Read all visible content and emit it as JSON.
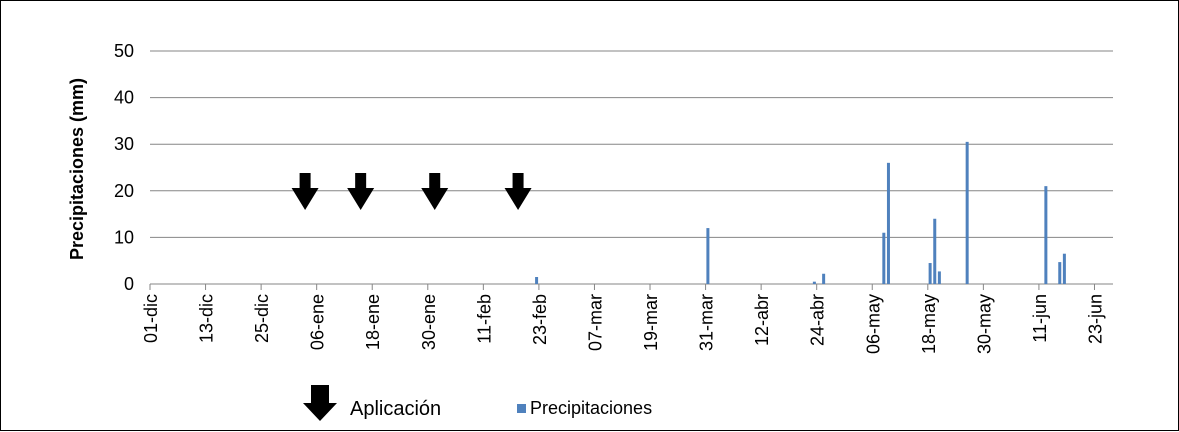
{
  "chart_data": {
    "type": "bar",
    "title": "",
    "xlabel": "",
    "ylabel": "Precipitaciones (mm)",
    "ylim": [
      0,
      50
    ],
    "y_ticks": [
      "0",
      "10",
      "20",
      "30",
      "40",
      "50"
    ],
    "x_ticks": [
      "01-dic",
      "13-dic",
      "25-dic",
      "06-ene",
      "18-ene",
      "30-ene",
      "11-feb",
      "23-feb",
      "07-mar",
      "19-mar",
      "31-mar",
      "12-abr",
      "24-abr",
      "06-may",
      "18-may",
      "30-may",
      "11-jun",
      "23-jun"
    ],
    "grid": true,
    "legend_position": "bottom",
    "series": [
      {
        "name": "Precipitaciones",
        "color": "#4f81bd",
        "points": [
          {
            "x": "22-feb",
            "y": 1.5
          },
          {
            "x": "31-mar",
            "y": 12
          },
          {
            "x": "23-abr",
            "y": 0.5
          },
          {
            "x": "25-abr",
            "y": 2.2
          },
          {
            "x": "08-may",
            "y": 11
          },
          {
            "x": "09-may",
            "y": 26
          },
          {
            "x": "18-may",
            "y": 4.5
          },
          {
            "x": "19-may",
            "y": 14
          },
          {
            "x": "20-may",
            "y": 2.7
          },
          {
            "x": "26-may",
            "y": 30.5
          },
          {
            "x": "12-jun",
            "y": 21
          },
          {
            "x": "15-jun",
            "y": 4.7
          },
          {
            "x": "16-jun",
            "y": 6.5
          }
        ]
      }
    ],
    "annotations": {
      "arrow_marker_dates": [
        "03-ene",
        "15-ene",
        "31-ene",
        "18-feb"
      ],
      "arrow_color": "#000000",
      "legend_arrow_label": "Aplicación"
    }
  }
}
